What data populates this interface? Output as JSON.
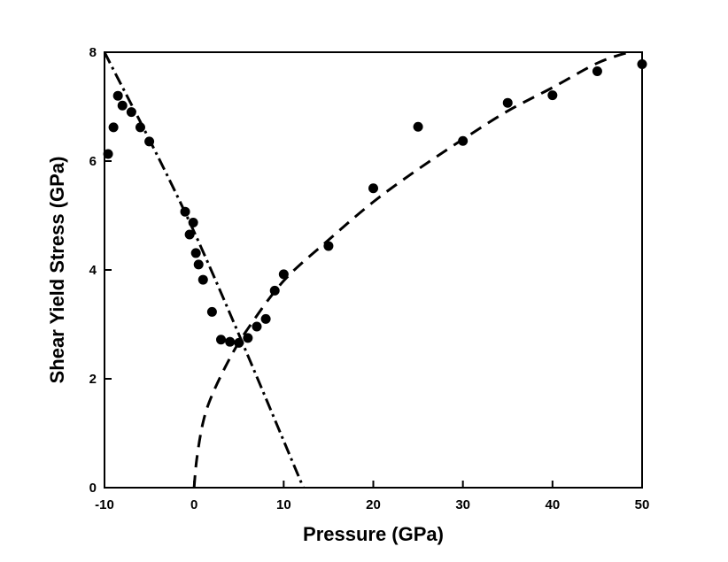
{
  "chart_data": {
    "type": "scatter",
    "xlabel": "Pressure (GPa)",
    "ylabel": "Shear Yield Stress (GPa)",
    "xlim": [
      -10,
      50
    ],
    "ylim": [
      0,
      8
    ],
    "xticks": [
      -10,
      0,
      10,
      20,
      30,
      40,
      50
    ],
    "yticks": [
      0,
      2,
      4,
      6,
      8
    ],
    "grid": false,
    "legend": "none",
    "series": [
      {
        "style": "markers",
        "color": "#000000",
        "points": [
          {
            "x": -9.6,
            "y": 6.13
          },
          {
            "x": -9.0,
            "y": 6.62
          },
          {
            "x": -8.5,
            "y": 7.2
          },
          {
            "x": -8.0,
            "y": 7.02
          },
          {
            "x": -7.0,
            "y": 6.9
          },
          {
            "x": -6.0,
            "y": 6.62
          },
          {
            "x": -5.0,
            "y": 6.36
          },
          {
            "x": -1.0,
            "y": 5.07
          },
          {
            "x": -0.5,
            "y": 4.65
          },
          {
            "x": -0.1,
            "y": 4.87
          },
          {
            "x": 0.2,
            "y": 4.31
          },
          {
            "x": 0.5,
            "y": 4.1
          },
          {
            "x": 1.0,
            "y": 3.82
          },
          {
            "x": 2.0,
            "y": 3.23
          },
          {
            "x": 3.0,
            "y": 2.72
          },
          {
            "x": 4.0,
            "y": 2.68
          },
          {
            "x": 5.0,
            "y": 2.66
          },
          {
            "x": 6.0,
            "y": 2.75
          },
          {
            "x": 7.0,
            "y": 2.96
          },
          {
            "x": 8.0,
            "y": 3.1
          },
          {
            "x": 9.0,
            "y": 3.62
          },
          {
            "x": 10.0,
            "y": 3.92
          },
          {
            "x": 15.0,
            "y": 4.44
          },
          {
            "x": 20.0,
            "y": 5.5
          },
          {
            "x": 25.0,
            "y": 6.63
          },
          {
            "x": 30.0,
            "y": 6.37
          },
          {
            "x": 35.0,
            "y": 7.07
          },
          {
            "x": 40.0,
            "y": 7.21
          },
          {
            "x": 45.0,
            "y": 7.65
          },
          {
            "x": 50.0,
            "y": 7.78
          }
        ]
      },
      {
        "style": "dash-dot",
        "color": "#000000",
        "points": [
          {
            "x": -10,
            "y": 8.0
          },
          {
            "x": 0,
            "y": 4.7
          },
          {
            "x": 12.2,
            "y": 0
          }
        ]
      },
      {
        "style": "dashed",
        "color": "#000000",
        "points": [
          {
            "x": 0,
            "y": 0
          },
          {
            "x": 0.3,
            "y": 0.53
          },
          {
            "x": 1,
            "y": 1.2
          },
          {
            "x": 2,
            "y": 1.7
          },
          {
            "x": 4,
            "y": 2.38
          },
          {
            "x": 6,
            "y": 2.92
          },
          {
            "x": 10,
            "y": 3.8
          },
          {
            "x": 15,
            "y": 4.55
          },
          {
            "x": 20,
            "y": 5.25
          },
          {
            "x": 25,
            "y": 5.85
          },
          {
            "x": 30,
            "y": 6.4
          },
          {
            "x": 35,
            "y": 6.92
          },
          {
            "x": 40,
            "y": 7.35
          },
          {
            "x": 45,
            "y": 7.8
          },
          {
            "x": 48.5,
            "y": 8.0
          }
        ]
      }
    ]
  }
}
